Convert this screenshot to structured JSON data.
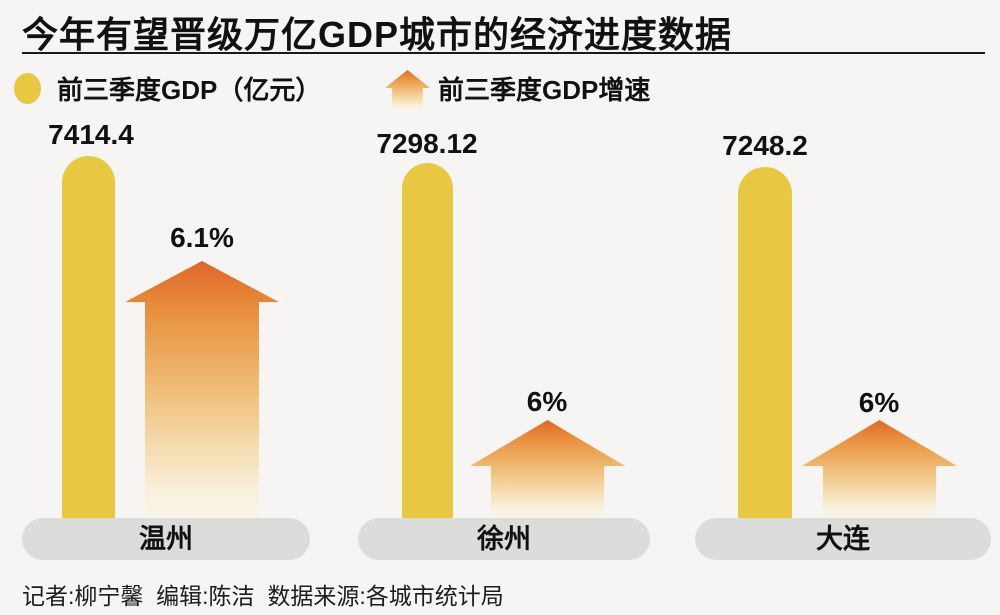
{
  "title": "今年有望晋级万亿GDP城市的经济进度数据",
  "legend": {
    "gdp_label": "前三季度GDP（亿元）",
    "growth_label": "前三季度GDP增速"
  },
  "cities": [
    {
      "name": "温州",
      "gdp": "7414.4",
      "growth": "6.1%"
    },
    {
      "name": "徐州",
      "gdp": "7298.12",
      "growth": "6%"
    },
    {
      "name": "大连",
      "gdp": "7248.2",
      "growth": "6%"
    }
  ],
  "footer": {
    "credits": "记者:柳宁馨  编辑:陈洁  数据来源:各城市统计局"
  },
  "chart_data": {
    "type": "bar",
    "title": "今年有望晋级万亿GDP城市的经济进度数据",
    "categories": [
      "温州",
      "徐州",
      "大连"
    ],
    "series": [
      {
        "name": "前三季度GDP（亿元）",
        "type": "bar",
        "values": [
          7414.4,
          7298.12,
          7248.2
        ]
      },
      {
        "name": "前三季度GDP增速",
        "type": "arrow",
        "values": [
          6.1,
          6,
          6
        ],
        "unit": "%"
      }
    ],
    "xlabel": "",
    "ylabel": "",
    "grid": false,
    "legend_position": "top",
    "data_labels": true
  },
  "colors": {
    "background": "#f6f5f3",
    "bar_yellow": "#e8c843",
    "arrow_orange_top": "#e0662a",
    "arrow_fade_bottom": "#f7f4ea",
    "pill_gray": "#dcdcda",
    "text": "#111111"
  }
}
